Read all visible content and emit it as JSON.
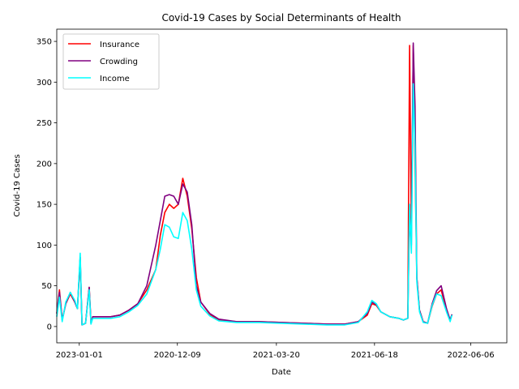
{
  "chart_data": {
    "type": "line",
    "title": "Covid-19 Cases by Social Determinants of Health",
    "xlabel": "Date",
    "ylabel": "Covid-19 Cases",
    "x_tick_labels": [
      "2023-01-01",
      "2020-12-09",
      "2021-03-20",
      "2021-06-18",
      "2022-06-06"
    ],
    "y_ticks": [
      0,
      50,
      100,
      150,
      200,
      250,
      300,
      350
    ],
    "ylim": [
      -20,
      365
    ],
    "x_index_range": [
      0,
      100
    ],
    "grid": false,
    "legend_position": "top-left",
    "note": "",
    "series": [
      {
        "name": "Insurance",
        "color": "#ff0000",
        "points": [
          [
            0,
            16
          ],
          [
            0.6,
            45
          ],
          [
            1.2,
            8
          ],
          [
            2,
            28
          ],
          [
            3,
            40
          ],
          [
            4,
            30
          ],
          [
            4.6,
            22
          ],
          [
            5.2,
            85
          ],
          [
            5.6,
            2
          ],
          [
            6.4,
            4
          ],
          [
            7.2,
            48
          ],
          [
            7.6,
            4
          ],
          [
            8,
            12
          ],
          [
            10,
            12
          ],
          [
            12,
            12
          ],
          [
            14,
            14
          ],
          [
            16,
            20
          ],
          [
            18,
            28
          ],
          [
            20,
            45
          ],
          [
            22,
            70
          ],
          [
            23,
            112
          ],
          [
            24,
            140
          ],
          [
            25,
            150
          ],
          [
            26,
            145
          ],
          [
            27,
            150
          ],
          [
            28,
            182
          ],
          [
            29,
            160
          ],
          [
            30,
            120
          ],
          [
            31,
            60
          ],
          [
            32,
            30
          ],
          [
            34,
            15
          ],
          [
            36,
            8
          ],
          [
            40,
            6
          ],
          [
            45,
            6
          ],
          [
            50,
            5
          ],
          [
            55,
            4
          ],
          [
            60,
            3
          ],
          [
            64,
            3
          ],
          [
            67,
            6
          ],
          [
            69,
            14
          ],
          [
            70,
            28
          ],
          [
            71,
            26
          ],
          [
            72,
            18
          ],
          [
            74,
            12
          ],
          [
            76,
            10
          ],
          [
            77,
            8
          ],
          [
            78,
            10
          ],
          [
            78.4,
            345
          ],
          [
            78.8,
            120
          ],
          [
            79.2,
            345
          ],
          [
            79.6,
            200
          ],
          [
            80,
            60
          ],
          [
            80.6,
            20
          ],
          [
            81.4,
            6
          ],
          [
            82.4,
            4
          ],
          [
            83.4,
            25
          ],
          [
            84.4,
            40
          ],
          [
            85.4,
            45
          ],
          [
            86.6,
            20
          ],
          [
            87.4,
            8
          ],
          [
            87.8,
            14
          ]
        ]
      },
      {
        "name": "Crowding",
        "color": "#800080",
        "points": [
          [
            0,
            16
          ],
          [
            0.6,
            42
          ],
          [
            1.2,
            8
          ],
          [
            2,
            28
          ],
          [
            3,
            42
          ],
          [
            4,
            30
          ],
          [
            4.6,
            22
          ],
          [
            5.2,
            85
          ],
          [
            5.6,
            2
          ],
          [
            6.4,
            4
          ],
          [
            7.2,
            48
          ],
          [
            7.6,
            4
          ],
          [
            8,
            12
          ],
          [
            10,
            12
          ],
          [
            12,
            12
          ],
          [
            14,
            14
          ],
          [
            16,
            20
          ],
          [
            18,
            28
          ],
          [
            20,
            50
          ],
          [
            22,
            100
          ],
          [
            23,
            130
          ],
          [
            24,
            160
          ],
          [
            25,
            162
          ],
          [
            26,
            160
          ],
          [
            27,
            150
          ],
          [
            28,
            175
          ],
          [
            29,
            165
          ],
          [
            30,
            125
          ],
          [
            31,
            50
          ],
          [
            32,
            30
          ],
          [
            34,
            16
          ],
          [
            36,
            9
          ],
          [
            40,
            6
          ],
          [
            45,
            6
          ],
          [
            50,
            5
          ],
          [
            55,
            4
          ],
          [
            60,
            3
          ],
          [
            64,
            3
          ],
          [
            67,
            6
          ],
          [
            69,
            16
          ],
          [
            70,
            30
          ],
          [
            71,
            27
          ],
          [
            72,
            18
          ],
          [
            74,
            12
          ],
          [
            76,
            10
          ],
          [
            77,
            8
          ],
          [
            78,
            10
          ],
          [
            78.4,
            140
          ],
          [
            78.8,
            100
          ],
          [
            79.2,
            348
          ],
          [
            79.6,
            270
          ],
          [
            80,
            60
          ],
          [
            80.6,
            20
          ],
          [
            81.4,
            6
          ],
          [
            82.4,
            4
          ],
          [
            83.4,
            28
          ],
          [
            84.4,
            44
          ],
          [
            85.4,
            50
          ],
          [
            86.6,
            22
          ],
          [
            87.4,
            8
          ],
          [
            87.8,
            15
          ]
        ]
      },
      {
        "name": "Income",
        "color": "#00ffff",
        "points": [
          [
            0,
            12
          ],
          [
            0.6,
            36
          ],
          [
            1.2,
            6
          ],
          [
            2,
            30
          ],
          [
            3,
            42
          ],
          [
            4,
            32
          ],
          [
            4.6,
            22
          ],
          [
            5.2,
            90
          ],
          [
            5.6,
            2
          ],
          [
            6.4,
            4
          ],
          [
            7.2,
            45
          ],
          [
            7.6,
            3
          ],
          [
            8,
            10
          ],
          [
            10,
            10
          ],
          [
            12,
            10
          ],
          [
            14,
            12
          ],
          [
            16,
            18
          ],
          [
            18,
            26
          ],
          [
            20,
            40
          ],
          [
            22,
            70
          ],
          [
            23,
            95
          ],
          [
            24,
            125
          ],
          [
            25,
            122
          ],
          [
            26,
            110
          ],
          [
            27,
            108
          ],
          [
            28,
            140
          ],
          [
            29,
            130
          ],
          [
            30,
            95
          ],
          [
            31,
            45
          ],
          [
            32,
            25
          ],
          [
            34,
            13
          ],
          [
            36,
            7
          ],
          [
            40,
            5
          ],
          [
            45,
            5
          ],
          [
            50,
            4
          ],
          [
            55,
            3
          ],
          [
            60,
            2
          ],
          [
            64,
            2
          ],
          [
            67,
            5
          ],
          [
            69,
            18
          ],
          [
            70,
            32
          ],
          [
            71,
            28
          ],
          [
            72,
            18
          ],
          [
            74,
            12
          ],
          [
            76,
            10
          ],
          [
            77,
            8
          ],
          [
            78,
            10
          ],
          [
            78.4,
            150
          ],
          [
            78.8,
            90
          ],
          [
            79.2,
            298
          ],
          [
            79.6,
            220
          ],
          [
            80,
            55
          ],
          [
            80.6,
            18
          ],
          [
            81.4,
            5
          ],
          [
            82.4,
            4
          ],
          [
            83.4,
            26
          ],
          [
            84.4,
            40
          ],
          [
            85.4,
            38
          ],
          [
            86.6,
            18
          ],
          [
            87.4,
            6
          ],
          [
            87.8,
            14
          ]
        ]
      }
    ]
  }
}
